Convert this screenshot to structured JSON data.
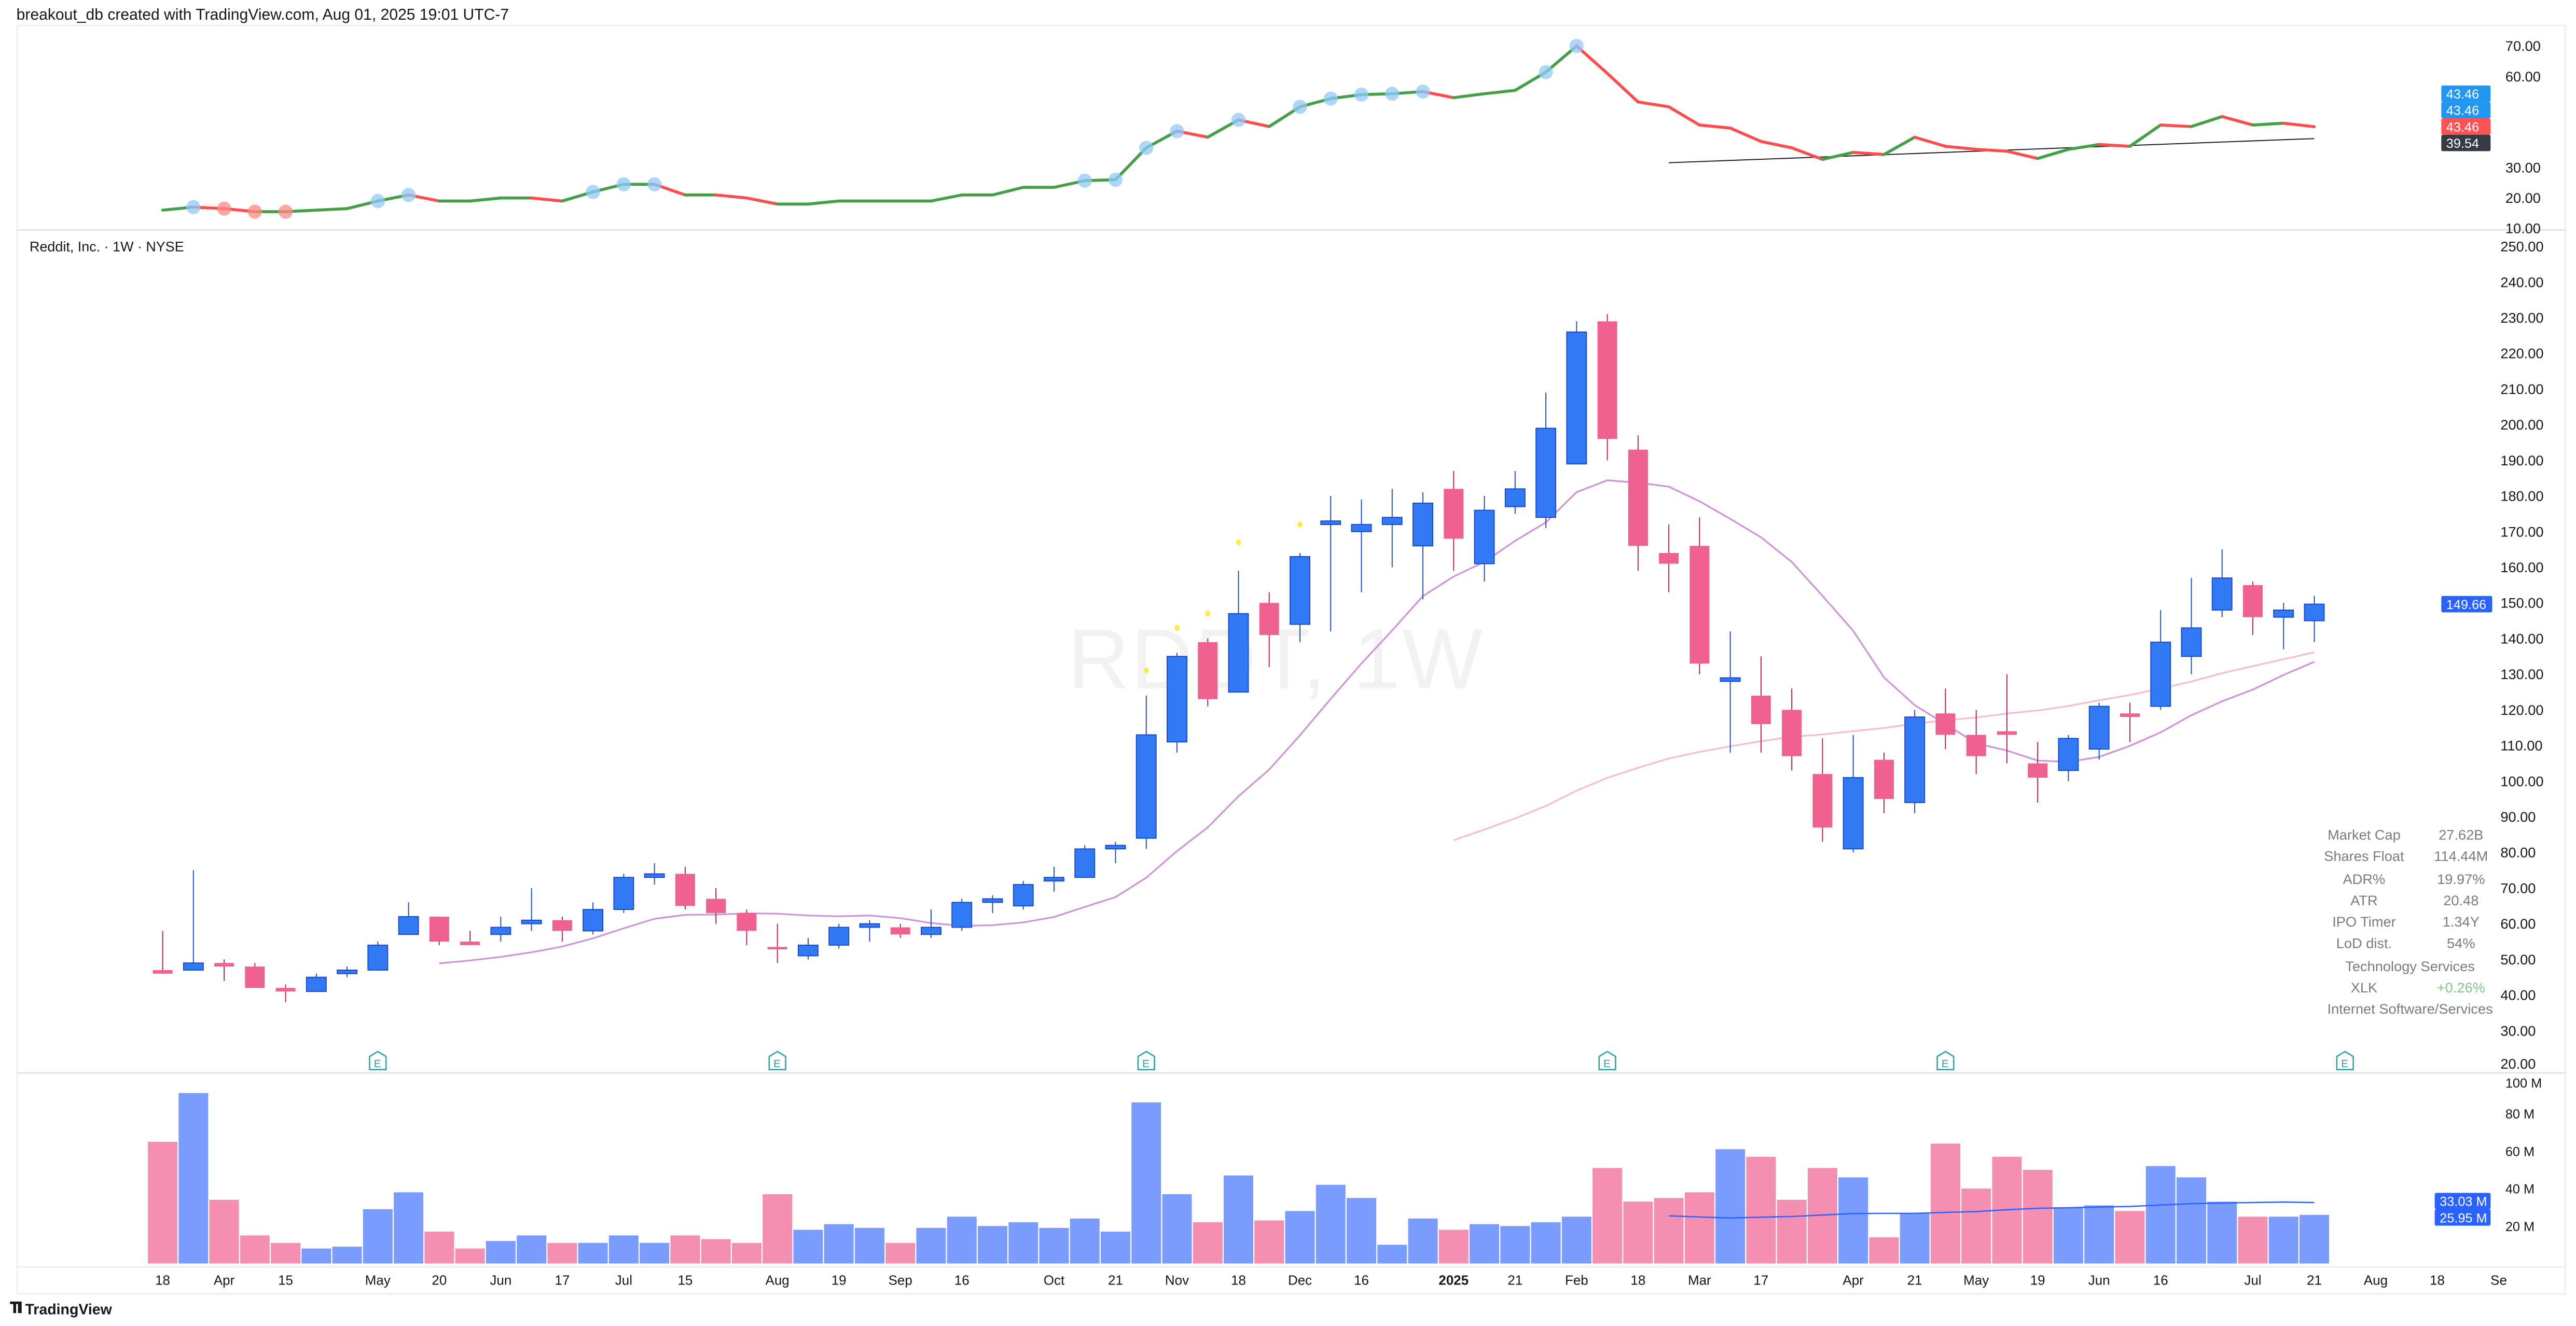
{
  "header": {
    "attribution": "breakout_db created with TradingView.com, Aug 01, 2025 19:01 UTC-7"
  },
  "symbol_title": "Reddit, Inc. · 1W · NYSE",
  "watermark": "RDDT, 1W",
  "footer": {
    "brand": "TradingView",
    "logo_icon": "tradingview-logo-icon"
  },
  "colors": {
    "up": "#3179f5",
    "up_border": "#1848cc",
    "down": "#ef6290",
    "rs_up": "#43a047",
    "rs_down": "#ff4d4d",
    "ma_fast": "#ce93d8",
    "ma_slow": "#f8bbd0",
    "vol_up": "#7a9cff",
    "vol_down": "#f48fb1",
    "marker_blue": "#90caf9",
    "marker_red": "#ff8a80",
    "dot_yellow": "#ffeb3b"
  },
  "stats": {
    "rows": [
      {
        "label": "Market Cap",
        "value": "27.62B"
      },
      {
        "label": "Shares Float",
        "value": "114.44M"
      },
      {
        "label": "ADR%",
        "value": "19.97%"
      },
      {
        "label": "ATR",
        "value": "20.48"
      },
      {
        "label": "IPO Timer",
        "value": "1.34Y"
      },
      {
        "label": "LoD dist.",
        "value": "54%"
      }
    ],
    "sector": "Technology Services",
    "etf_label": "XLK",
    "etf_change": "+0.26%",
    "industry": "Internet Software/Services"
  },
  "chart_data": [
    {
      "type": "line",
      "panel": "top",
      "ylim": [
        10,
        70
      ],
      "y_ticks": [
        "70.00",
        "60.00",
        "30.00",
        "20.00",
        "10.00"
      ],
      "y_tick_values": [
        70,
        60,
        30,
        20,
        10
      ],
      "values": [
        16,
        17,
        16.5,
        15.5,
        15.5,
        16,
        16.5,
        19,
        21,
        19,
        19,
        20,
        20,
        19,
        22,
        24.5,
        24.5,
        21,
        21,
        20,
        18,
        18,
        19,
        19,
        19,
        19,
        21,
        21,
        23.5,
        23.5,
        25.7,
        26,
        36.5,
        42,
        40,
        45.7,
        43.5,
        50,
        52.7,
        54,
        54.3,
        55,
        53,
        54.3,
        55.4,
        61.4,
        70,
        61,
        51.6,
        50,
        44,
        43,
        38.6,
        36.5,
        32.7,
        35,
        34.3,
        40,
        37,
        36,
        35.4,
        33,
        36,
        37.6,
        37,
        44,
        43.5,
        46.8,
        44,
        44.6,
        43.46
      ],
      "blue_markers_at": [
        "2024-03-25",
        "2024-05-06",
        "2024-05-13",
        "2024-06-24",
        "2024-07-01",
        "2024-07-08",
        "2024-10-14",
        "2024-10-21",
        "2024-10-28",
        "2024-11-04",
        "2024-11-18",
        "2024-12-02",
        "2024-12-09",
        "2024-12-16",
        "2024-12-23",
        "2024-12-30",
        "2025-01-27",
        "2025-02-03"
      ],
      "red_markers_at": [
        "2024-04-01",
        "2024-04-08",
        "2024-04-15"
      ],
      "trendline": {
        "from": {
          "date": "2025-02-24",
          "value": 31.6
        },
        "to": {
          "date": "2025-07-21",
          "value": 39.54
        }
      },
      "price_labels": [
        {
          "text": "43.46",
          "color": "#2196f3"
        },
        {
          "text": "43.46",
          "color": "#2196f3"
        },
        {
          "text": "43.46",
          "color": "#ff5252"
        },
        {
          "text": "39.54",
          "color": "#363a45"
        }
      ]
    },
    {
      "type": "candlestick",
      "panel": "main",
      "ylim": [
        20,
        250
      ],
      "y_ticks": [
        "250.00",
        "240.00",
        "230.00",
        "220.00",
        "210.00",
        "200.00",
        "190.00",
        "180.00",
        "170.00",
        "160.00",
        "150.00",
        "140.00",
        "130.00",
        "120.00",
        "110.00",
        "100.00",
        "90.00",
        "80.00",
        "70.00",
        "60.00",
        "50.00",
        "40.00",
        "30.00",
        "20.00"
      ],
      "y_tick_values": [
        250,
        240,
        230,
        220,
        210,
        200,
        190,
        180,
        170,
        160,
        150,
        140,
        130,
        120,
        110,
        100,
        90,
        80,
        70,
        60,
        50,
        40,
        30,
        20
      ],
      "dates": [
        "2024-03-18",
        "2024-03-25",
        "2024-04-01",
        "2024-04-08",
        "2024-04-15",
        "2024-04-22",
        "2024-04-29",
        "2024-05-06",
        "2024-05-13",
        "2024-05-20",
        "2024-05-27",
        "2024-06-03",
        "2024-06-10",
        "2024-06-17",
        "2024-06-24",
        "2024-07-01",
        "2024-07-08",
        "2024-07-15",
        "2024-07-22",
        "2024-07-29",
        "2024-08-05",
        "2024-08-12",
        "2024-08-19",
        "2024-08-26",
        "2024-09-02",
        "2024-09-09",
        "2024-09-16",
        "2024-09-23",
        "2024-09-30",
        "2024-10-07",
        "2024-10-14",
        "2024-10-21",
        "2024-10-28",
        "2024-11-04",
        "2024-11-11",
        "2024-11-18",
        "2024-11-25",
        "2024-12-02",
        "2024-12-09",
        "2024-12-16",
        "2024-12-23",
        "2024-12-30",
        "2025-01-06",
        "2025-01-13",
        "2025-01-20",
        "2025-01-27",
        "2025-02-03",
        "2025-02-10",
        "2025-02-17",
        "2025-02-24",
        "2025-03-03",
        "2025-03-10",
        "2025-03-17",
        "2025-03-24",
        "2025-03-31",
        "2025-04-07",
        "2025-04-14",
        "2025-04-21",
        "2025-04-28",
        "2025-05-05",
        "2025-05-12",
        "2025-05-19",
        "2025-05-26",
        "2025-06-02",
        "2025-06-09",
        "2025-06-16",
        "2025-06-23",
        "2025-06-30",
        "2025-07-07",
        "2025-07-14",
        "2025-07-21"
      ],
      "ohlc": [
        [
          47,
          58,
          46,
          46
        ],
        [
          47,
          75,
          47,
          49
        ],
        [
          49,
          50,
          44,
          48
        ],
        [
          48,
          49,
          42,
          42
        ],
        [
          42,
          43,
          38,
          41
        ],
        [
          41,
          46,
          41,
          45
        ],
        [
          46,
          48,
          45,
          47
        ],
        [
          47,
          55,
          47,
          54
        ],
        [
          57,
          66,
          57,
          62
        ],
        [
          62,
          62,
          54,
          55
        ],
        [
          55,
          58,
          54,
          54
        ],
        [
          57,
          62,
          55,
          59
        ],
        [
          60,
          70,
          58,
          61
        ],
        [
          61,
          62,
          55,
          58
        ],
        [
          58,
          66,
          57,
          64
        ],
        [
          64,
          74,
          63,
          73
        ],
        [
          73,
          77,
          71,
          74
        ],
        [
          74,
          76,
          64,
          65
        ],
        [
          67,
          70,
          60,
          63
        ],
        [
          63,
          64,
          54,
          58
        ],
        [
          53.5,
          60,
          49,
          53
        ],
        [
          51,
          56,
          50,
          54
        ],
        [
          54,
          60,
          53,
          59
        ],
        [
          59,
          61,
          55,
          60
        ],
        [
          59,
          60,
          56,
          57
        ],
        [
          57,
          64,
          56,
          59
        ],
        [
          59,
          67,
          58,
          66
        ],
        [
          66,
          68,
          63,
          67
        ],
        [
          65,
          72,
          64,
          71
        ],
        [
          72,
          76,
          69,
          73
        ],
        [
          73,
          82,
          73,
          81
        ],
        [
          81,
          83,
          77,
          82
        ],
        [
          84,
          124,
          81,
          113
        ],
        [
          111,
          136,
          108,
          135
        ],
        [
          139,
          140,
          121,
          123
        ],
        [
          125,
          159,
          125,
          147
        ],
        [
          150,
          153,
          132,
          141
        ],
        [
          144,
          164,
          139,
          163
        ],
        [
          172,
          180,
          142,
          173
        ],
        [
          170,
          179,
          153,
          172
        ],
        [
          172,
          182,
          160,
          174
        ],
        [
          166,
          181,
          151,
          178
        ],
        [
          182,
          187,
          159,
          168
        ],
        [
          161,
          180,
          156,
          176
        ],
        [
          177,
          187,
          175,
          182
        ],
        [
          174,
          209,
          171,
          199
        ],
        [
          189,
          229,
          189,
          226
        ],
        [
          229,
          231,
          190,
          196
        ],
        [
          193,
          197,
          159,
          166
        ],
        [
          164,
          172,
          153,
          161
        ],
        [
          166,
          174,
          130,
          133
        ],
        [
          128,
          142,
          108,
          129
        ],
        [
          124,
          135,
          108,
          116
        ],
        [
          120,
          126,
          103,
          107
        ],
        [
          102,
          112,
          83,
          87
        ],
        [
          81,
          113,
          80,
          101
        ],
        [
          106,
          108,
          91,
          95
        ],
        [
          94,
          120,
          91,
          118
        ],
        [
          119,
          126,
          109,
          113
        ],
        [
          113,
          120,
          102,
          107
        ],
        [
          114,
          130,
          105,
          113
        ],
        [
          105,
          111,
          94,
          101
        ],
        [
          103,
          113,
          100,
          112
        ],
        [
          109,
          122,
          106,
          121
        ],
        [
          119,
          122,
          111,
          118
        ],
        [
          121,
          148,
          120,
          139
        ],
        [
          135,
          157,
          130,
          143
        ],
        [
          148,
          165,
          146,
          157
        ],
        [
          155,
          156,
          141,
          146
        ],
        [
          146,
          150,
          137,
          148
        ],
        [
          145,
          152,
          139,
          149.66
        ]
      ],
      "last_price_label": {
        "text": "149.66",
        "color": "#2962ff"
      },
      "yellow_dots": [
        {
          "date": "2024-10-28",
          "value": 131
        },
        {
          "date": "2024-11-04",
          "value": 143
        },
        {
          "date": "2024-11-11",
          "value": 147
        },
        {
          "date": "2024-11-18",
          "value": 167
        },
        {
          "date": "2024-12-02",
          "value": 172
        }
      ],
      "earnings_marker_label": "E",
      "earnings_dates": [
        "2024-05-06",
        "2024-08-05",
        "2024-10-28",
        "2025-02-10",
        "2025-04-28",
        "2025-07-28"
      ]
    },
    {
      "type": "bar",
      "panel": "volume",
      "ylim": [
        0,
        100
      ],
      "unit": "M",
      "y_ticks": [
        "100 M",
        "80 M",
        "60 M",
        "40 M",
        "20 M"
      ],
      "y_tick_values": [
        100,
        80,
        60,
        40,
        20
      ],
      "values": [
        65,
        91,
        34,
        15,
        11,
        8,
        9,
        29,
        38,
        17,
        8,
        12,
        15,
        11,
        11,
        15,
        11,
        15,
        13,
        11,
        37,
        18,
        21,
        19,
        11,
        19,
        25,
        20,
        22,
        19,
        24,
        17,
        86,
        37,
        22,
        47,
        23,
        28,
        42,
        35,
        10,
        24,
        18,
        21,
        20,
        22,
        25,
        51,
        33,
        35,
        38,
        61,
        57,
        34,
        51,
        46,
        14,
        27,
        64,
        40,
        57,
        50,
        30,
        31,
        28,
        52,
        46,
        33,
        25,
        25,
        25.95
      ],
      "value_labels": [
        {
          "text": "33.03 M",
          "color": "#2962ff"
        },
        {
          "text": "25.95 M",
          "color": "#2962ff"
        }
      ]
    }
  ],
  "x_axis": {
    "ticks": [
      {
        "label": "18",
        "date": "2024-03-18"
      },
      {
        "label": "Apr",
        "date": "2024-04-01"
      },
      {
        "label": "15",
        "date": "2024-04-15"
      },
      {
        "label": "May",
        "date": "2024-05-06"
      },
      {
        "label": "20",
        "date": "2024-05-20"
      },
      {
        "label": "Jun",
        "date": "2024-06-03"
      },
      {
        "label": "17",
        "date": "2024-06-17"
      },
      {
        "label": "Jul",
        "date": "2024-07-01"
      },
      {
        "label": "15",
        "date": "2024-07-15"
      },
      {
        "label": "Aug",
        "date": "2024-08-05"
      },
      {
        "label": "19",
        "date": "2024-08-19"
      },
      {
        "label": "Sep",
        "date": "2024-09-02"
      },
      {
        "label": "16",
        "date": "2024-09-16"
      },
      {
        "label": "Oct",
        "date": "2024-10-07"
      },
      {
        "label": "21",
        "date": "2024-10-21"
      },
      {
        "label": "Nov",
        "date": "2024-11-04"
      },
      {
        "label": "18",
        "date": "2024-11-18"
      },
      {
        "label": "Dec",
        "date": "2024-12-02"
      },
      {
        "label": "16",
        "date": "2024-12-16"
      },
      {
        "label": "2025",
        "date": "2025-01-06"
      },
      {
        "label": "21",
        "date": "2025-01-20"
      },
      {
        "label": "Feb",
        "date": "2025-02-03"
      },
      {
        "label": "18",
        "date": "2025-02-17"
      },
      {
        "label": "Mar",
        "date": "2025-03-03"
      },
      {
        "label": "17",
        "date": "2025-03-17"
      },
      {
        "label": "Apr",
        "date": "2025-04-07"
      },
      {
        "label": "21",
        "date": "2025-04-21"
      },
      {
        "label": "May",
        "date": "2025-05-05"
      },
      {
        "label": "19",
        "date": "2025-05-19"
      },
      {
        "label": "Jun",
        "date": "2025-06-02"
      },
      {
        "label": "16",
        "date": "2025-06-16"
      },
      {
        "label": "Jul",
        "date": "2025-07-07"
      },
      {
        "label": "21",
        "date": "2025-07-21"
      },
      {
        "label": "Aug",
        "date": "2025-08-04"
      },
      {
        "label": "18",
        "date": "2025-08-18"
      },
      {
        "label": "Se",
        "date": "2025-09-01"
      }
    ]
  }
}
